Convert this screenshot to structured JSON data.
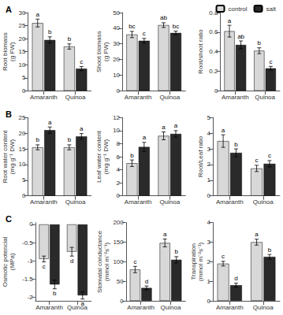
{
  "chart_data": [
    {
      "type": "bar",
      "title": "A",
      "ylabel": "Root biomass\n(g FW)",
      "categories": [
        "Amaranth",
        "Quinoa"
      ],
      "series": [
        {
          "name": "control",
          "color": "#d8d8d8",
          "values": [
            26.0,
            17.0
          ],
          "errors": [
            1.5,
            1.0
          ],
          "letters": [
            "a",
            "b"
          ]
        },
        {
          "name": "salt",
          "color": "#2a2a2a",
          "values": [
            19.5,
            8.5
          ],
          "errors": [
            1.2,
            0.8
          ],
          "letters": [
            "b",
            "c"
          ]
        }
      ],
      "ylim": [
        0,
        30
      ],
      "yticks": [
        0,
        5,
        10,
        15,
        20,
        25,
        30
      ],
      "grid": false
    },
    {
      "type": "bar",
      "ylabel": "Shoot biomass\n(g FW)",
      "categories": [
        "Amaranth",
        "Quinoa"
      ],
      "series": [
        {
          "name": "control",
          "color": "#d8d8d8",
          "values": [
            36.0,
            42.0
          ],
          "errors": [
            2.0,
            1.5
          ],
          "letters": [
            "bc",
            "ab"
          ]
        },
        {
          "name": "salt",
          "color": "#2a2a2a",
          "values": [
            32.0,
            37.0
          ],
          "errors": [
            1.5,
            1.2
          ],
          "letters": [
            "c",
            "bc"
          ]
        }
      ],
      "ylim": [
        0,
        50
      ],
      "yticks": [
        0,
        10,
        20,
        30,
        40,
        50
      ],
      "grid": false
    },
    {
      "type": "bar",
      "ylabel": "Root/shoot ratio",
      "categories": [
        "Amaranth",
        "Quinoa"
      ],
      "series": [
        {
          "name": "control",
          "color": "#d8d8d8",
          "values": [
            0.61,
            0.41
          ],
          "errors": [
            0.06,
            0.03
          ],
          "letters": [
            "a",
            "b"
          ]
        },
        {
          "name": "salt",
          "color": "#2a2a2a",
          "values": [
            0.47,
            0.23
          ],
          "errors": [
            0.04,
            0.02
          ],
          "letters": [
            "ab",
            "c"
          ]
        }
      ],
      "ylim": [
        0.0,
        0.8
      ],
      "yticks": [
        0.0,
        0.2,
        0.4,
        0.6,
        0.8
      ],
      "grid": false,
      "legend": "upper right"
    },
    {
      "type": "bar",
      "title": "B",
      "ylabel": "Root water content\n(mg g⁻¹ DW)",
      "categories": [
        "Amaranth",
        "Quinoa"
      ],
      "series": [
        {
          "name": "control",
          "color": "#d8d8d8",
          "values": [
            15.5,
            15.5
          ],
          "errors": [
            0.8,
            0.8
          ],
          "letters": [
            "b",
            "b"
          ]
        },
        {
          "name": "salt",
          "color": "#2a2a2a",
          "values": [
            21.0,
            19.0
          ],
          "errors": [
            1.0,
            0.9
          ],
          "letters": [
            "a",
            "a"
          ]
        }
      ],
      "ylim": [
        0,
        25
      ],
      "yticks": [
        0,
        5,
        10,
        15,
        20,
        25
      ],
      "grid": false
    },
    {
      "type": "bar",
      "ylabel": "Leaf water content\n(mg g⁻¹ DW)",
      "categories": [
        "Amaranth",
        "Quinoa"
      ],
      "series": [
        {
          "name": "control",
          "color": "#d8d8d8",
          "values": [
            5.0,
            9.2
          ],
          "errors": [
            0.5,
            0.6
          ],
          "letters": [
            "b",
            "a"
          ]
        },
        {
          "name": "salt",
          "color": "#2a2a2a",
          "values": [
            7.5,
            9.5
          ],
          "errors": [
            0.7,
            0.5
          ],
          "letters": [
            "a",
            "a"
          ]
        }
      ],
      "ylim": [
        0,
        12
      ],
      "yticks": [
        0,
        2,
        4,
        6,
        8,
        10,
        12
      ],
      "grid": false
    },
    {
      "type": "bar",
      "ylabel": "Root/Leaf ratio",
      "categories": [
        "Amaranth",
        "Quinoa"
      ],
      "series": [
        {
          "name": "control",
          "color": "#d8d8d8",
          "values": [
            3.5,
            1.75
          ],
          "errors": [
            0.4,
            0.2
          ],
          "letters": [
            "a",
            "c"
          ]
        },
        {
          "name": "salt",
          "color": "#2a2a2a",
          "values": [
            2.75,
            2.05
          ],
          "errors": [
            0.25,
            0.2
          ],
          "letters": [
            "b",
            "c"
          ]
        }
      ],
      "ylim": [
        0,
        5
      ],
      "yticks": [
        0,
        1,
        2,
        3,
        4,
        5
      ],
      "grid": false
    },
    {
      "type": "bar",
      "title": "C",
      "ylabel": "Osmotic potencial\n(MPa)",
      "categories": [
        "Amaranth",
        "Quinoa"
      ],
      "series": [
        {
          "name": "control",
          "color": "#d8d8d8",
          "values": [
            -0.95,
            -0.75
          ],
          "errors": [
            0.08,
            0.12
          ],
          "letters": [
            "c",
            "d"
          ]
        },
        {
          "name": "salt",
          "color": "#2a2a2a",
          "values": [
            -1.65,
            -1.95
          ],
          "errors": [
            0.12,
            0.1
          ],
          "letters": [
            "b",
            "a"
          ]
        }
      ],
      "ylim": [
        -2.1,
        0.05
      ],
      "yticks": [
        0.0,
        -0.5,
        -1.0,
        -1.5,
        -2.0
      ],
      "grid": false
    },
    {
      "type": "bar",
      "ylabel": "Stomatal conductance\n(mmol m⁻²s⁻¹)",
      "categories": [
        "Amaranth",
        "Quinoa"
      ],
      "series": [
        {
          "name": "control",
          "color": "#d8d8d8",
          "values": [
            80,
            148
          ],
          "errors": [
            8,
            10
          ],
          "letters": [
            "c",
            "a"
          ]
        },
        {
          "name": "salt",
          "color": "#2a2a2a",
          "values": [
            33,
            105
          ],
          "errors": [
            5,
            8
          ],
          "letters": [
            "d",
            "b"
          ]
        }
      ],
      "ylim": [
        0,
        200
      ],
      "yticks": [
        0,
        50,
        100,
        150,
        200
      ],
      "grid": false
    },
    {
      "type": "bar",
      "ylabel": "Transpiration\n(mmol m⁻²s⁻¹)",
      "categories": [
        "Amaranth",
        "Quinoa"
      ],
      "series": [
        {
          "name": "control",
          "color": "#d8d8d8",
          "values": [
            1.9,
            3.0
          ],
          "errors": [
            0.12,
            0.15
          ],
          "letters": [
            "c",
            "a"
          ]
        },
        {
          "name": "salt",
          "color": "#2a2a2a",
          "values": [
            0.8,
            2.25
          ],
          "errors": [
            0.1,
            0.12
          ],
          "letters": [
            "d",
            "b"
          ]
        }
      ],
      "ylim": [
        0,
        4
      ],
      "yticks": [
        0,
        1,
        2,
        3,
        4
      ],
      "grid": false
    }
  ]
}
